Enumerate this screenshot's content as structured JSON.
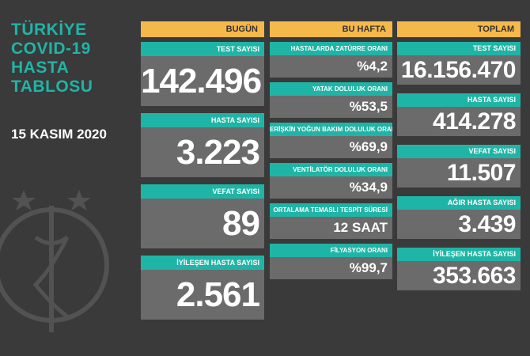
{
  "title": {
    "line1": "TÜRKİYE",
    "line2": "COVID-19",
    "line3": "HASTA",
    "line4": "TABLOSU"
  },
  "date": "15 KASIM 2020",
  "today": {
    "heading": "BUGÜN",
    "items": [
      {
        "label": "TEST SAYISI",
        "value": "142.496"
      },
      {
        "label": "HASTA SAYISI",
        "value": "3.223"
      },
      {
        "label": "VEFAT SAYISI",
        "value": "89"
      },
      {
        "label": "İYİLEŞEN HASTA SAYISI",
        "value": "2.561"
      }
    ]
  },
  "week": {
    "heading": "BU HAFTA",
    "items": [
      {
        "label": "HASTALARDA ZATÜRRE ORANI",
        "value": "%4,2"
      },
      {
        "label": "YATAK DOLULUK ORANI",
        "value": "%53,5"
      },
      {
        "label": "ERİŞKİN YOĞUN BAKIM DOLULUK ORANI",
        "value": "%69,9"
      },
      {
        "label": "VENTİLATÖR DOLULUK ORANI",
        "value": "%34,9"
      },
      {
        "label": "ORTALAMA TEMASLI TESPİT SÜRESİ",
        "value": "12 SAAT"
      },
      {
        "label": "FİLYASYON ORANI",
        "value": "%99,7"
      }
    ]
  },
  "total": {
    "heading": "TOPLAM",
    "items": [
      {
        "label": "TEST SAYISI",
        "value": "16.156.470"
      },
      {
        "label": "HASTA SAYISI",
        "value": "414.278"
      },
      {
        "label": "VEFAT SAYISI",
        "value": "11.507"
      },
      {
        "label": "AĞIR HASTA SAYISI",
        "value": "3.439"
      },
      {
        "label": "İYİLEŞEN HASTA SAYISI",
        "value": "353.663"
      }
    ]
  },
  "colors": {
    "accent": "#1fb5a6",
    "header": "#f5b84a",
    "panel": "#6b6b6b",
    "background": "#3a3a3a"
  }
}
